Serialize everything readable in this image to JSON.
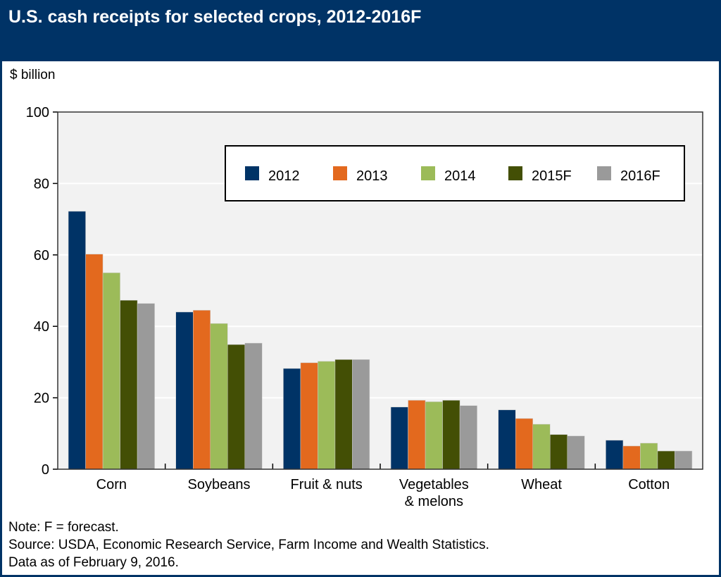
{
  "chart_data": {
    "type": "bar",
    "title": "U.S. cash receipts for selected crops, 2012-2016F",
    "ylabel": "$ billion",
    "xlabel": "",
    "ylim": [
      0,
      100
    ],
    "yticks": [
      0,
      20,
      40,
      60,
      80,
      100
    ],
    "grid": true,
    "legend_position": "top-right",
    "categories": [
      "Corn",
      "Soybeans",
      "Fruit & nuts",
      "Vegetables\n& melons",
      "Wheat",
      "Cotton"
    ],
    "series": [
      {
        "name": "2012",
        "color": "#003366",
        "values": [
          72.2,
          44.0,
          28.2,
          17.4,
          16.6,
          8.1
        ]
      },
      {
        "name": "2013",
        "color": "#e3691e",
        "values": [
          60.2,
          44.5,
          29.8,
          19.3,
          14.2,
          6.5
        ]
      },
      {
        "name": "2014",
        "color": "#9cbb59",
        "values": [
          55.0,
          40.8,
          30.2,
          18.9,
          12.6,
          7.3
        ]
      },
      {
        "name": "2015F",
        "color": "#434f05",
        "values": [
          47.3,
          34.9,
          30.7,
          19.3,
          9.7,
          5.1
        ]
      },
      {
        "name": "2016F",
        "color": "#9a9a9a",
        "values": [
          46.4,
          35.3,
          30.7,
          17.8,
          9.3,
          5.1
        ]
      }
    ]
  },
  "notes": {
    "note": "Note: F = forecast.",
    "source": "Source: USDA, Economic Research Service, Farm Income and Wealth Statistics.",
    "date": "Data as of February 9, 2016."
  }
}
